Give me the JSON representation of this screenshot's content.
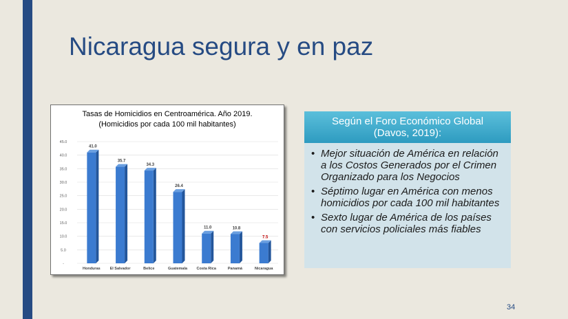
{
  "slide": {
    "title": "Nicaragua segura y en paz",
    "page_number": "34",
    "colors": {
      "accent": "#264b83",
      "background": "#ebe8df",
      "bar": "#3b7bd0",
      "highlight_label": "#c00000"
    }
  },
  "callout": {
    "header": [
      "Según el Foro Económico Global",
      "(Davos, 2019):"
    ],
    "bullet_icon": "bullet-dot",
    "bullets": [
      "Mejor situación de América en relación a los Costos Generados por el Crimen Organizado para los Negocios",
      "Séptimo lugar en América con menos homicidios por cada 100 mil habitantes",
      "Sexto lugar de América de los países con servicios policiales más fiables"
    ]
  },
  "chart_data": {
    "type": "bar",
    "title": "Tasas de Homicidios en Centroamérica. Año 2019.",
    "subtitle": "(Homicidios por cada 100 mil habitantes)",
    "categories": [
      "Honduras",
      "El Salvador",
      "Belice",
      "Guatemala",
      "Costa Rica",
      "Panamá",
      "Nicaragua"
    ],
    "values": [
      41.0,
      35.7,
      34.3,
      26.4,
      11.0,
      10.8,
      7.5
    ],
    "value_labels": [
      "41.0",
      "35.7",
      "34.3",
      "26.4",
      "11.0",
      "10.8",
      "7.5"
    ],
    "highlight_index": 6,
    "ylim": [
      0,
      45
    ],
    "yticks": [
      0,
      5,
      10,
      15,
      20,
      25,
      30,
      35,
      40,
      45
    ],
    "ytick_labels": [
      "-",
      "5.0",
      "10.0",
      "15.0",
      "20.0",
      "25.0",
      "30.0",
      "35.0",
      "40.0",
      "45.0"
    ],
    "grid": true,
    "legend": false
  }
}
